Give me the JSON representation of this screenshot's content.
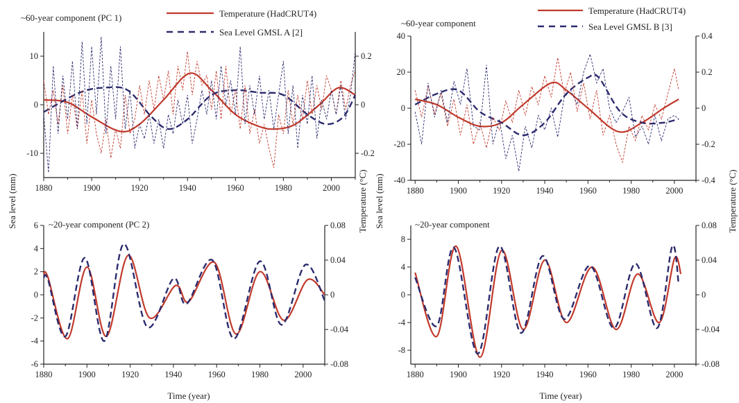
{
  "chart_data": [
    {
      "type": "line",
      "id": "a",
      "title": "~60-year component (PC 1)",
      "xlabel": "",
      "ylabel": "Sea level (mm)",
      "y2label": "Temperature (°C)",
      "xlim": [
        1880,
        2010
      ],
      "ylim": [
        -15,
        15
      ],
      "y2lim": [
        -0.3,
        0.3
      ],
      "xticks": [
        1880,
        1900,
        1920,
        1940,
        1960,
        1980,
        2000
      ],
      "yticks": [
        -10,
        0,
        10
      ],
      "y2ticks": [
        -0.2,
        0,
        0.2
      ],
      "legend": [
        "Temperature (HadCRUT4)",
        "Sea Level GMSL A [2]"
      ],
      "series": [
        {
          "name": "Temperature (HadCRUT4)",
          "axis": "right",
          "color": "#c0392b",
          "style": "solid",
          "x": [
            1880,
            1890,
            1900,
            1912,
            1920,
            1930,
            1941,
            1950,
            1960,
            1970,
            1977,
            1985,
            1995,
            2003,
            2010
          ],
          "y": [
            0.02,
            0.01,
            -0.05,
            -0.11,
            -0.08,
            0.02,
            0.13,
            0.06,
            -0.04,
            -0.09,
            -0.1,
            -0.08,
            0.0,
            0.07,
            0.04
          ]
        },
        {
          "name": "Sea Level GMSL A [2]",
          "axis": "left",
          "color": "#2b2b6e",
          "style": "dashed",
          "x": [
            1880,
            1895,
            1905,
            1915,
            1925,
            1932,
            1940,
            1950,
            1960,
            1970,
            1980,
            1990,
            1998,
            2005,
            2010
          ],
          "y": [
            -1.5,
            2.5,
            3.5,
            3.0,
            -2.5,
            -5.0,
            -3.0,
            2.0,
            3.0,
            2.5,
            2.0,
            -2.0,
            -4.0,
            -2.5,
            2.0
          ]
        },
        {
          "name": "raw-red",
          "axis": "left",
          "color": "#c0392b",
          "style": "thin-dashed",
          "x": [
            1880,
            1882,
            1884,
            1886,
            1888,
            1890,
            1892,
            1894,
            1896,
            1898,
            1900,
            1902,
            1904,
            1906,
            1908,
            1910,
            1912,
            1914,
            1916,
            1918,
            1920,
            1922,
            1924,
            1926,
            1928,
            1930,
            1932,
            1934,
            1936,
            1938,
            1940,
            1942,
            1944,
            1946,
            1948,
            1950,
            1952,
            1954,
            1956,
            1958,
            1960,
            1962,
            1964,
            1966,
            1968,
            1970,
            1972,
            1974,
            1976,
            1978,
            1980,
            1982,
            1984,
            1986,
            1988,
            1990,
            1992,
            1994,
            1996,
            1998,
            2000,
            2002,
            2004,
            2006,
            2008,
            2010
          ],
          "y": [
            5,
            -2,
            3,
            -4,
            4,
            -6,
            2,
            -5,
            3,
            -8,
            1,
            -6,
            -10,
            -3,
            -11,
            -5,
            -9,
            2,
            -6,
            -3,
            4,
            -2,
            5,
            -1,
            6,
            1,
            7,
            -2,
            8,
            3,
            11,
            2,
            9,
            4,
            6,
            -1,
            7,
            -3,
            8,
            -2,
            3,
            -5,
            4,
            -6,
            -1,
            -8,
            -4,
            -9,
            -13,
            -2,
            -6,
            3,
            -4,
            2,
            -3,
            5,
            -2,
            4,
            -1,
            6,
            3,
            -2,
            5,
            -1,
            4,
            7
          ]
        },
        {
          "name": "raw-blue",
          "axis": "left",
          "color": "#2b2b6e",
          "style": "thin-dashed",
          "x": [
            1880,
            1882,
            1884,
            1886,
            1888,
            1890,
            1892,
            1894,
            1896,
            1898,
            1900,
            1902,
            1904,
            1906,
            1908,
            1910,
            1912,
            1914,
            1916,
            1918,
            1920,
            1922,
            1924,
            1926,
            1928,
            1930,
            1932,
            1934,
            1936,
            1938,
            1940,
            1942,
            1944,
            1946,
            1948,
            1950,
            1952,
            1954,
            1956,
            1958,
            1960,
            1962,
            1964,
            1966,
            1968,
            1970,
            1972,
            1974,
            1976,
            1978,
            1980,
            1982,
            1984,
            1986,
            1988,
            1990,
            1992,
            1994,
            1996,
            1998,
            2000,
            2002,
            2004,
            2006,
            2008,
            2010
          ],
          "y": [
            -2,
            -14,
            8,
            -6,
            6,
            -3,
            9,
            -5,
            13,
            -4,
            12,
            -2,
            14,
            -6,
            8,
            -3,
            12,
            -5,
            3,
            -9,
            -4,
            -7,
            -2,
            -8,
            -3,
            -9,
            -2,
            -6,
            1,
            -4,
            2,
            -8,
            -3,
            3,
            -2,
            5,
            -3,
            8,
            0,
            5,
            -2,
            12,
            -4,
            4,
            -2,
            6,
            -3,
            3,
            -5,
            2,
            9,
            -6,
            4,
            -9,
            2,
            -4,
            6,
            -7,
            1,
            -3,
            3,
            -2,
            4,
            -3,
            2,
            11
          ]
        }
      ]
    },
    {
      "type": "line",
      "id": "b",
      "title": "~60-year component",
      "xlabel": "",
      "ylabel": "Sea level (mm)",
      "y2label": "Temperature (°C)",
      "xlim": [
        1878,
        2010
      ],
      "ylim": [
        -40,
        40
      ],
      "y2lim": [
        -0.4,
        0.4
      ],
      "xticks": [
        1880,
        1900,
        1920,
        1940,
        1960,
        1980,
        2000
      ],
      "yticks": [
        -40,
        -20,
        0,
        20,
        40
      ],
      "y2ticks": [
        -0.4,
        -0.2,
        0,
        0.2,
        0.4
      ],
      "legend": [
        "Temperature (HadCRUT4)",
        "Sea Level GMSL B [3]"
      ],
      "series": [
        {
          "name": "Temperature (HadCRUT4)",
          "axis": "right",
          "color": "#c0392b",
          "style": "solid",
          "x": [
            1880,
            1890,
            1900,
            1910,
            1920,
            1930,
            1943,
            1950,
            1960,
            1974,
            1985,
            1995,
            2002
          ],
          "y": [
            0.05,
            0.02,
            -0.05,
            -0.1,
            -0.08,
            0.02,
            0.14,
            0.1,
            0.0,
            -0.13,
            -0.08,
            0.0,
            0.05
          ]
        },
        {
          "name": "Sea Level GMSL B [3]",
          "axis": "left",
          "color": "#2b2b6e",
          "style": "dashed",
          "x": [
            1880,
            1890,
            1900,
            1910,
            1920,
            1930,
            1940,
            1950,
            1960,
            1965,
            1975,
            1985,
            1995,
            2002
          ],
          "y": [
            2,
            8,
            10,
            -2,
            -8,
            -15,
            -8,
            8,
            17,
            17,
            -2,
            -8,
            -8,
            -6
          ]
        },
        {
          "name": "raw-red",
          "axis": "left",
          "color": "#c0392b",
          "style": "thin-dashed",
          "x": [
            1880,
            1883,
            1886,
            1889,
            1892,
            1895,
            1898,
            1901,
            1904,
            1907,
            1910,
            1913,
            1916,
            1919,
            1922,
            1925,
            1928,
            1931,
            1934,
            1937,
            1940,
            1943,
            1946,
            1949,
            1952,
            1955,
            1958,
            1961,
            1964,
            1967,
            1970,
            1973,
            1976,
            1979,
            1982,
            1985,
            1988,
            1991,
            1994,
            1997,
            2000,
            2002
          ],
          "y": [
            10,
            -5,
            12,
            -3,
            8,
            -10,
            5,
            -15,
            2,
            -20,
            -8,
            -22,
            -5,
            -12,
            4,
            -8,
            10,
            -4,
            12,
            2,
            18,
            6,
            28,
            8,
            20,
            -2,
            14,
            -6,
            10,
            -15,
            -4,
            -20,
            -30,
            -10,
            -18,
            -4,
            -12,
            2,
            -6,
            8,
            22,
            10
          ]
        },
        {
          "name": "raw-blue",
          "axis": "left",
          "color": "#2b2b6e",
          "style": "thin-dashed",
          "x": [
            1880,
            1883,
            1886,
            1889,
            1892,
            1895,
            1898,
            1901,
            1904,
            1907,
            1910,
            1913,
            1916,
            1919,
            1922,
            1925,
            1928,
            1931,
            1934,
            1937,
            1940,
            1943,
            1946,
            1949,
            1952,
            1955,
            1958,
            1961,
            1964,
            1967,
            1970,
            1973,
            1976,
            1979,
            1982,
            1985,
            1988,
            1991,
            1994,
            1997,
            2000,
            2002
          ],
          "y": [
            -2,
            -20,
            14,
            -5,
            10,
            -8,
            15,
            2,
            22,
            -10,
            -12,
            24,
            -20,
            -6,
            -28,
            -15,
            -35,
            -10,
            -22,
            -4,
            -12,
            0,
            -16,
            6,
            10,
            2,
            20,
            30,
            14,
            22,
            0,
            -8,
            -2,
            6,
            -16,
            -10,
            -20,
            -4,
            -18,
            -6,
            -4,
            -6
          ]
        }
      ]
    },
    {
      "type": "line",
      "id": "c",
      "title": "~20-year component (PC 2)",
      "xlabel": "Time (year)",
      "ylabel": "",
      "y2label": "",
      "xlim": [
        1880,
        2010
      ],
      "ylim": [
        -6,
        6
      ],
      "y2lim": [
        -0.08,
        0.08
      ],
      "xticks": [
        1880,
        1900,
        1920,
        1940,
        1960,
        1980,
        2000
      ],
      "yticks": [
        -6,
        -4,
        -2,
        0,
        2,
        4,
        6
      ],
      "y2ticks": [
        -0.08,
        -0.04,
        0,
        0.04,
        0.08
      ],
      "series": [
        {
          "name": "Temperature (HadCRUT4)",
          "axis": "left",
          "color": "#c0392b",
          "style": "solid",
          "x": [
            1880,
            1882,
            1891,
            1900,
            1909,
            1919,
            1929,
            1941,
            1947,
            1959,
            1969,
            1980,
            1991,
            2002,
            2010
          ],
          "y": [
            1.8,
            1.5,
            -3.8,
            2.4,
            -3.6,
            3.4,
            -2.0,
            0.8,
            -0.6,
            2.8,
            -3.4,
            2.0,
            -2.2,
            1.3,
            0.0
          ]
        },
        {
          "name": "Sea Level GMSL A [2]",
          "axis": "left",
          "color": "#2b2b6e",
          "style": "dashed",
          "x": [
            1880,
            1882,
            1890,
            1899,
            1908,
            1917,
            1928,
            1940,
            1946,
            1958,
            1968,
            1980,
            1990,
            2001,
            2010
          ],
          "y": [
            1.5,
            1.3,
            -3.6,
            3.2,
            -4.0,
            4.4,
            -2.8,
            1.4,
            -0.8,
            3.0,
            -3.8,
            2.9,
            -2.6,
            2.6,
            -0.5
          ]
        }
      ]
    },
    {
      "type": "line",
      "id": "d",
      "title": "~20-year component",
      "xlabel": "Time (year)",
      "ylabel": "",
      "y2label": "",
      "xlim": [
        1878,
        2010
      ],
      "ylim": [
        -10,
        10
      ],
      "y2lim": [
        -0.08,
        0.08
      ],
      "xticks": [
        1880,
        1900,
        1920,
        1940,
        1960,
        1980,
        2000
      ],
      "yticks": [
        -8,
        -4,
        0,
        4,
        8
      ],
      "y2ticks": [
        -0.08,
        -0.04,
        0,
        0.04,
        0.08
      ],
      "series": [
        {
          "name": "Temperature (HadCRUT4)",
          "axis": "left",
          "color": "#c0392b",
          "style": "solid",
          "x": [
            1880,
            1890,
            1899,
            1910,
            1920,
            1930,
            1940,
            1950,
            1962,
            1973,
            1983,
            1993,
            2000,
            2003
          ],
          "y": [
            3.2,
            -6.0,
            7.0,
            -9.0,
            6.4,
            -5.0,
            5.0,
            -4.0,
            4.0,
            -5.0,
            3.0,
            -4.0,
            5.2,
            3.0
          ]
        },
        {
          "name": "Sea Level GMSL B [3]",
          "axis": "left",
          "color": "#2b2b6e",
          "style": "dashed",
          "x": [
            1880,
            1890,
            1898,
            1909,
            1919,
            1929,
            1939,
            1949,
            1961,
            1972,
            1982,
            1992,
            1999,
            2002
          ],
          "y": [
            2.5,
            -4.5,
            6.8,
            -8.5,
            7.0,
            -5.5,
            5.6,
            -3.5,
            4.2,
            -4.8,
            4.5,
            -4.8,
            7.0,
            1.5
          ]
        }
      ]
    }
  ]
}
